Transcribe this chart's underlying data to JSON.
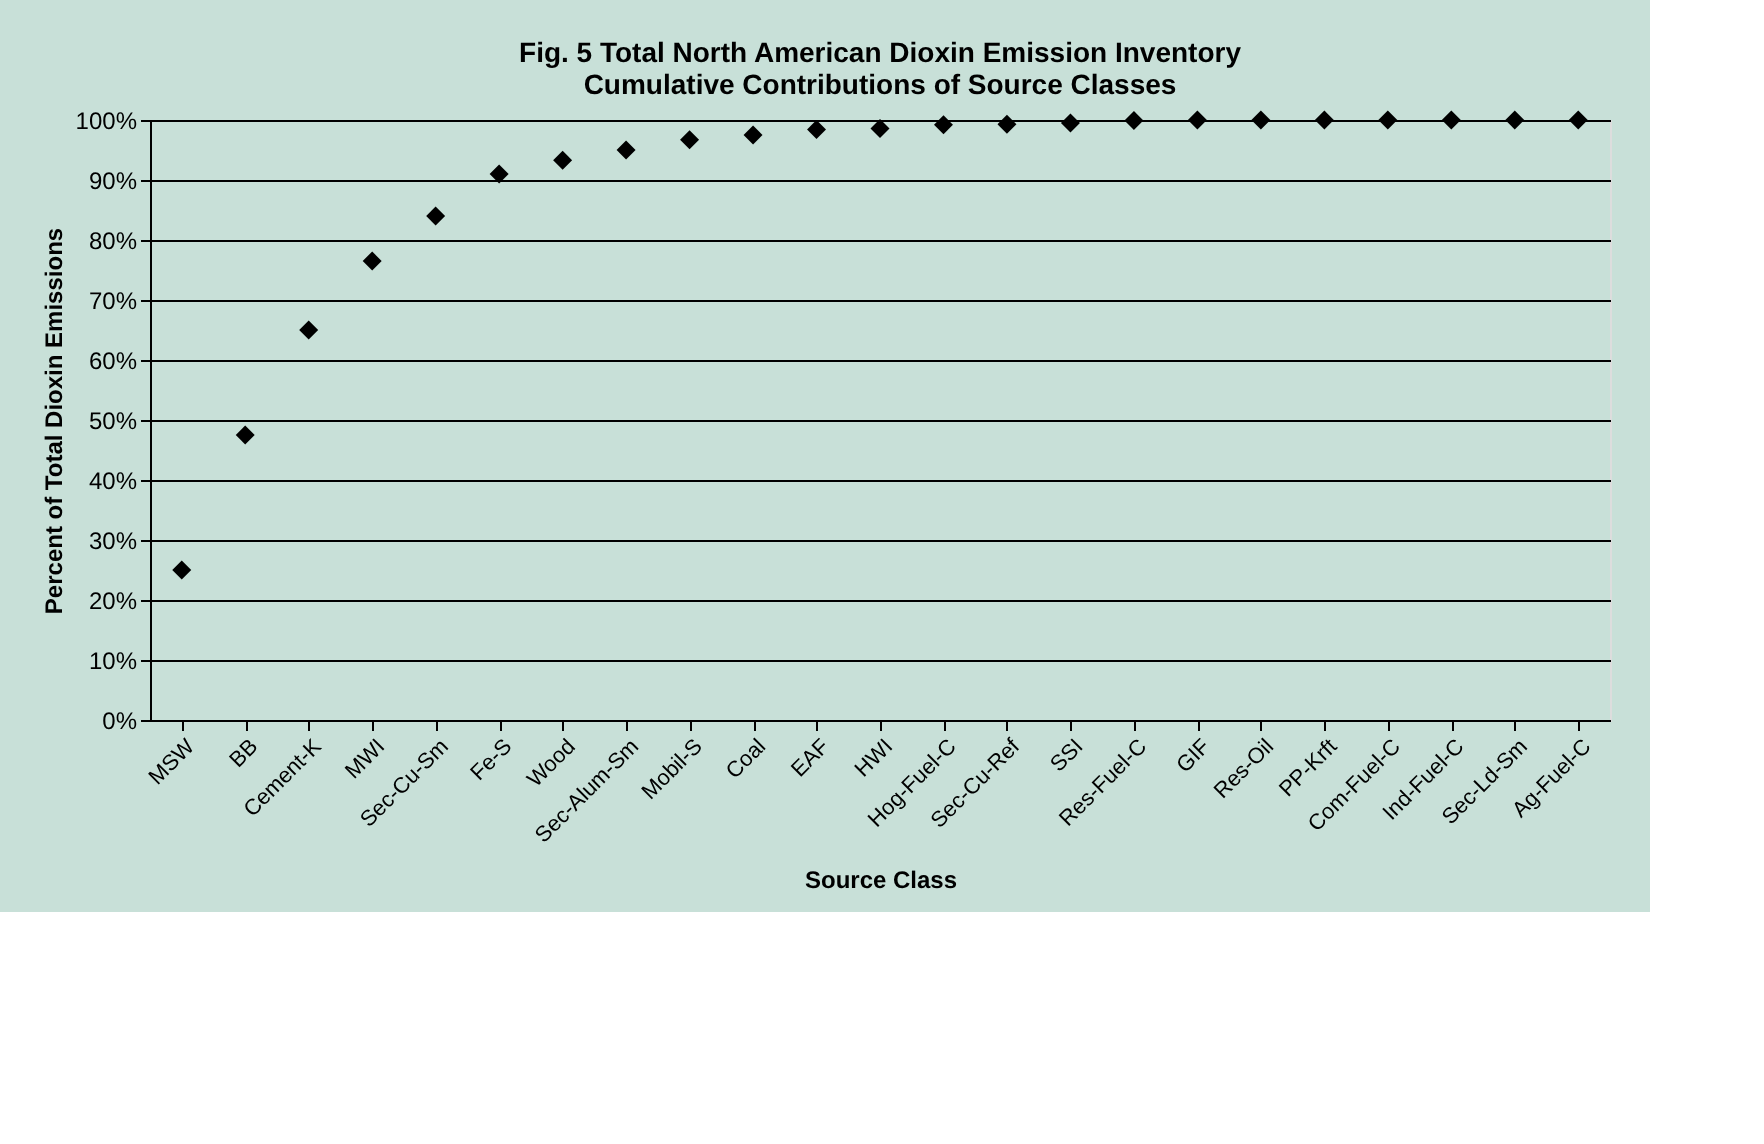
{
  "chart_data": {
    "type": "scatter",
    "title": [
      "Fig. 5 Total North American Dioxin Emission Inventory",
      "Cumulative Contributions of Source Classes"
    ],
    "xlabel": "Source Class",
    "ylabel": "Percent of Total Dioxin Emissions",
    "categories": [
      "MSW",
      "BB",
      "Cement-K",
      "MWI",
      "Sec-Cu-Sm",
      "Fe-S",
      "Wood",
      "Sec-Alum-Sm",
      "Mobil-S",
      "Coal",
      "EAF",
      "HWI",
      "Hog-Fuel-C",
      "Sec-Cu-Ref",
      "SSI",
      "Res-Fuel-C",
      "GIF",
      "Res-Oil",
      "PP-Krft",
      "Com-Fuel-C",
      "Ind-Fuel-C",
      "Sec-Ld-Sm",
      "Ag-Fuel-C"
    ],
    "series": [
      {
        "color": "#000000",
        "values": [
          25,
          47.5,
          65,
          76.5,
          84,
          91,
          93.3,
          95,
          96.7,
          97.5,
          98.4,
          98.6,
          99.2,
          99.3,
          99.5,
          99.9,
          100,
          100,
          100,
          100,
          100,
          100,
          100
        ]
      }
    ],
    "ylim": [
      0,
      100
    ],
    "yticks": [
      {
        "value": 0,
        "label": "0%"
      },
      {
        "value": 10,
        "label": "10%"
      },
      {
        "value": 20,
        "label": "20%"
      },
      {
        "value": 30,
        "label": "30%"
      },
      {
        "value": 40,
        "label": "40%"
      },
      {
        "value": 50,
        "label": "50%"
      },
      {
        "value": 60,
        "label": "60%"
      },
      {
        "value": 70,
        "label": "70%"
      },
      {
        "value": 80,
        "label": "80%"
      },
      {
        "value": 90,
        "label": "90%"
      },
      {
        "value": 100,
        "label": "100%"
      }
    ],
    "grid": "y",
    "marker": "diamond",
    "legend": false
  }
}
